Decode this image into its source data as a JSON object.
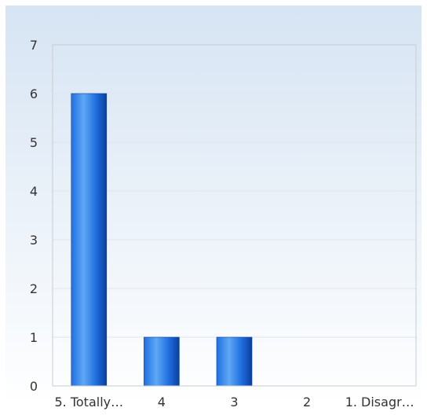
{
  "colors": {
    "background_top": "#d6e4f3",
    "background_bottom": "#ffffff",
    "bar_light": "#5fa8f5",
    "bar_mid": "#1f6fe0",
    "bar_dark": "#0b3f9c",
    "axis": "#c8ccd2",
    "gridline": "#dde5ee",
    "text": "#333333"
  },
  "chart_data": {
    "type": "bar",
    "categories": [
      "5. Totally…",
      "4",
      "3",
      "2",
      "1. Disagr…"
    ],
    "values": [
      6,
      1,
      1,
      0,
      0
    ],
    "title": "",
    "xlabel": "",
    "ylabel": "",
    "ylim": [
      0,
      7
    ],
    "yticks": [
      "0",
      "1",
      "2",
      "3",
      "4",
      "5",
      "6",
      "7"
    ],
    "grid": true,
    "legend": "none"
  }
}
